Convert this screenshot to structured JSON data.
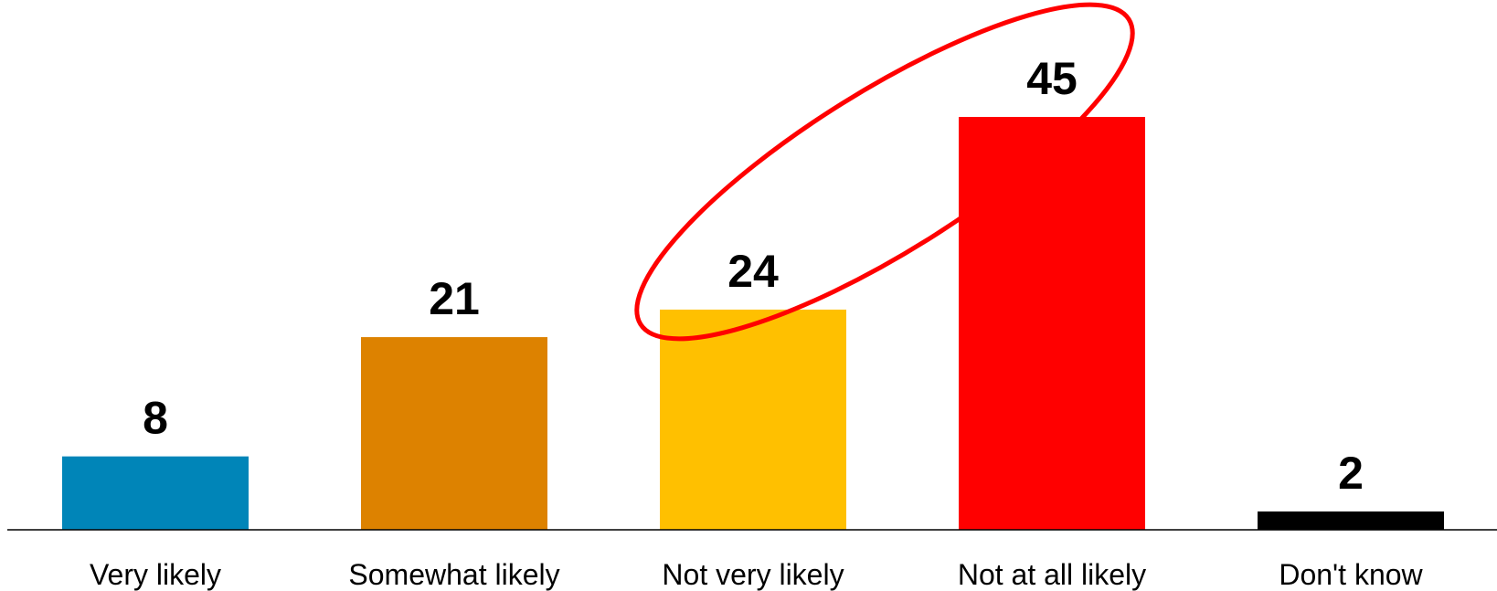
{
  "chart_data": {
    "type": "bar",
    "categories": [
      "Very likely",
      "Somewhat likely",
      "Not very likely",
      "Not at all likely",
      "Don't know"
    ],
    "values": [
      8,
      21,
      24,
      45,
      2
    ],
    "value_labels": [
      "8",
      "21",
      "24",
      "45",
      "2"
    ],
    "colors": [
      "#0085B8",
      "#DD8200",
      "#FFC000",
      "#FF0000",
      "#000000"
    ],
    "ylim": [
      0,
      45
    ],
    "grid": false,
    "legend": "none",
    "annotation": {
      "shape": "ellipse",
      "highlights": [
        "Not very likely",
        "Not at all likely"
      ],
      "color": "#FF0000"
    }
  }
}
